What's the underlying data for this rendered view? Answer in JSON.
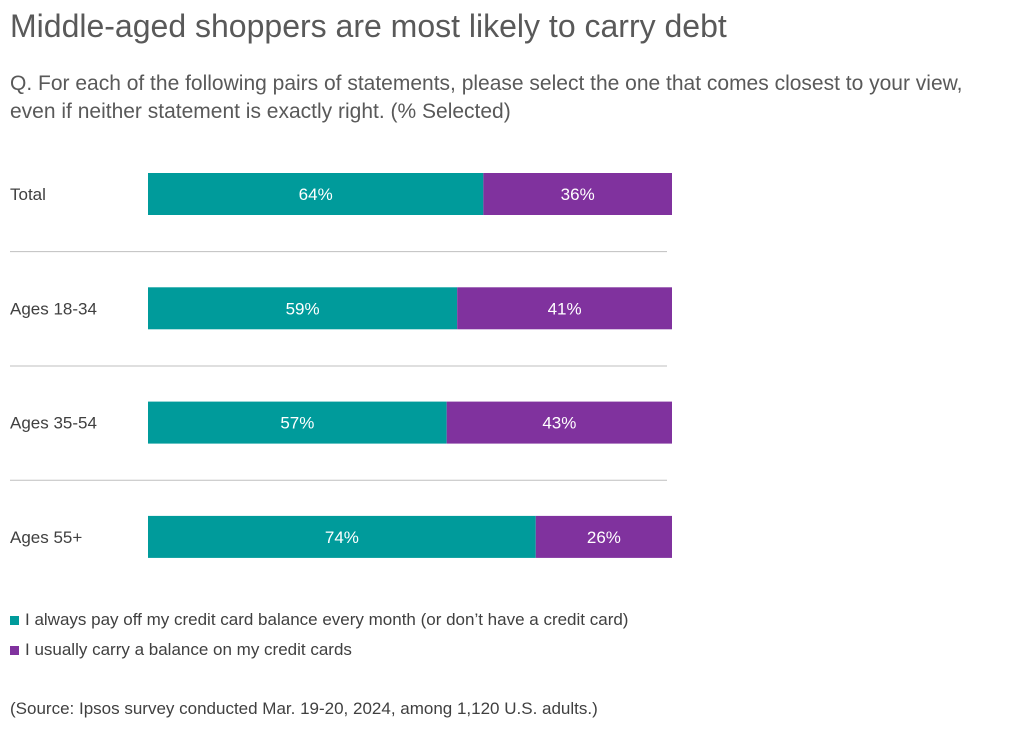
{
  "chart_data": {
    "type": "bar",
    "orientation": "horizontal",
    "stacked": true,
    "title": "Middle-aged shoppers are most likely to carry debt",
    "subtitle": "Q. For each of the following pairs of statements, please select the one that comes closest to your view, even if neither statement is exactly right. (% Selected)",
    "categories": [
      "Total",
      "Ages 18-34",
      "Ages 35-54",
      "Ages 55+"
    ],
    "series": [
      {
        "name": "I always pay off my credit card balance every month (or don’t have a credit card)",
        "color": "#009B9B",
        "values": [
          64,
          59,
          57,
          74
        ],
        "labels": [
          "64%",
          "59%",
          "57%",
          "74%"
        ]
      },
      {
        "name": "I usually carry a balance on my credit cards",
        "color": "#80329E",
        "values": [
          36,
          41,
          43,
          26
        ],
        "labels": [
          "36%",
          "41%",
          "43%",
          "26%"
        ]
      }
    ],
    "xlim": [
      0,
      100
    ],
    "legend_position": "bottom-left",
    "source": "(Source: Ipsos survey conducted Mar. 19-20, 2024, among 1,120 U.S. adults.)"
  }
}
